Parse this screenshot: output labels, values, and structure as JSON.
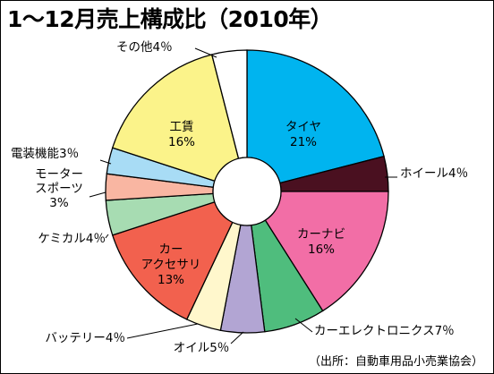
{
  "chart_data": {
    "type": "pie",
    "title": "1～12月売上構成比（2010年）",
    "source": "（出所：自動車用品小売業協会）",
    "slices": [
      {
        "label": "タイヤ",
        "value": 21,
        "color": "#00b4ef"
      },
      {
        "label": "ホイール",
        "value": 4,
        "color": "#4a1020"
      },
      {
        "label": "カーナビ",
        "value": 16,
        "color": "#f26ea6"
      },
      {
        "label": "カーエレクトロニクス",
        "value": 7,
        "color": "#4fbd7d"
      },
      {
        "label": "オイル",
        "value": 5,
        "color": "#b2a5d3"
      },
      {
        "label": "バッテリー",
        "value": 4,
        "color": "#fff7cc"
      },
      {
        "label": "カーアクセサリ",
        "value": 13,
        "color": "#f2614e"
      },
      {
        "label": "ケミカル",
        "value": 4,
        "color": "#a7dcb2"
      },
      {
        "label": "モータースポーツ",
        "value": 3,
        "color": "#f9b6a2"
      },
      {
        "label": "電装機能",
        "value": 3,
        "color": "#a8dcf5"
      },
      {
        "label": "工賃",
        "value": 16,
        "color": "#fbf38a"
      },
      {
        "label": "その他",
        "value": 4,
        "color": "#ffffff"
      }
    ],
    "inside_labels": {
      "タイヤ": [
        "タイヤ",
        "21%"
      ],
      "カーナビ": [
        "カーナビ",
        "16%"
      ],
      "カーアクセサリ": [
        "カー",
        "アクセサリ",
        "13%"
      ],
      "工賃": [
        "工賃",
        "16%"
      ]
    },
    "outside_labels": {
      "ホイール": [
        "ホイール4％"
      ],
      "カーエレクトロニクス": [
        "カーエレクトロニクス7％"
      ],
      "オイル": [
        "オイル5％"
      ],
      "バッテリー": [
        "バッテリー4％"
      ],
      "ケミカル": [
        "ケミカル4％"
      ],
      "モータースポーツ": [
        "モーター",
        "スポーツ",
        "3%"
      ],
      "電装機能": [
        "電装機能3％"
      ],
      "その他": [
        "その他4％"
      ]
    }
  }
}
